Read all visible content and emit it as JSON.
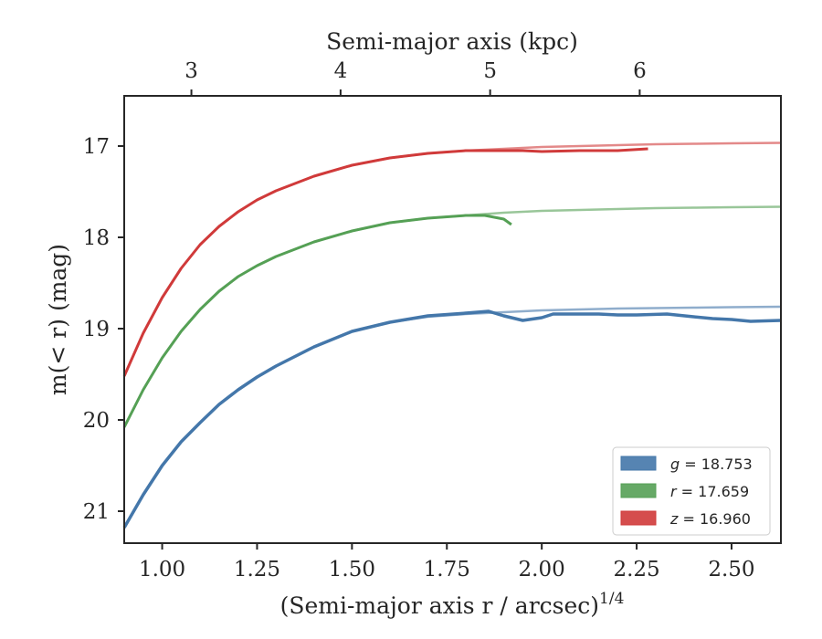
{
  "chart_data": {
    "type": "line",
    "xlabel": "(Semi-major axis r / arcsec)",
    "xlabel_sup": "1/4",
    "ylabel": "m(< r) (mag)",
    "top_xlabel": "Semi-major axis (kpc)",
    "xlim": [
      0.9,
      2.63
    ],
    "ylim": [
      21.35,
      16.45
    ],
    "y_inverted": true,
    "x_ticks": [
      1.0,
      1.25,
      1.5,
      1.75,
      2.0,
      2.25,
      2.5
    ],
    "x_tick_labels": [
      "1.00",
      "1.25",
      "1.50",
      "1.75",
      "2.00",
      "2.25",
      "2.50"
    ],
    "y_ticks": [
      17,
      18,
      19,
      20,
      21
    ],
    "y_tick_labels": [
      "17",
      "18",
      "19",
      "20",
      "21"
    ],
    "top_ticks": [
      3,
      4,
      5,
      6
    ],
    "top_tick_labels": [
      "3",
      "4",
      "5",
      "6"
    ],
    "top_tick_x_positions": [
      1.077,
      1.47,
      1.864,
      2.258
    ],
    "grid": false,
    "legend_position": "lower-right",
    "legend": [
      {
        "label": "g = 18.753",
        "var": "g",
        "value": "18.753",
        "color": "#4477aa"
      },
      {
        "label": "r = 17.659",
        "var": "r",
        "value": "17.659",
        "color": "#55a055"
      },
      {
        "label": "z = 16.960",
        "var": "z",
        "value": "16.960",
        "color": "#d03a3a"
      }
    ],
    "series": [
      {
        "name": "g = 18.753",
        "color": "#4477aa",
        "x": [
          0.9,
          0.95,
          1.0,
          1.05,
          1.1,
          1.15,
          1.2,
          1.25,
          1.3,
          1.4,
          1.5,
          1.6,
          1.7,
          1.8,
          1.86,
          1.9,
          1.95,
          2.0,
          2.03,
          2.1,
          2.15,
          2.2,
          2.25,
          2.33,
          2.4,
          2.45,
          2.5,
          2.55,
          2.63
        ],
        "y": [
          21.18,
          20.82,
          20.5,
          20.24,
          20.03,
          19.83,
          19.67,
          19.53,
          19.41,
          19.2,
          19.03,
          18.93,
          18.86,
          18.83,
          18.81,
          18.86,
          18.91,
          18.88,
          18.84,
          18.84,
          18.84,
          18.85,
          18.85,
          18.84,
          18.87,
          18.89,
          18.9,
          18.92,
          18.91
        ]
      },
      {
        "name": "r = 17.659",
        "color": "#55a055",
        "x": [
          0.9,
          0.95,
          1.0,
          1.05,
          1.1,
          1.15,
          1.2,
          1.25,
          1.3,
          1.4,
          1.5,
          1.6,
          1.7,
          1.8,
          1.85,
          1.9,
          1.92
        ],
        "y": [
          20.08,
          19.67,
          19.32,
          19.03,
          18.79,
          18.59,
          18.43,
          18.31,
          18.21,
          18.05,
          17.93,
          17.84,
          17.79,
          17.76,
          17.76,
          17.8,
          17.86
        ]
      },
      {
        "name": "z = 16.960",
        "color": "#d03a3a",
        "x": [
          0.9,
          0.95,
          1.0,
          1.05,
          1.1,
          1.15,
          1.2,
          1.25,
          1.3,
          1.4,
          1.5,
          1.6,
          1.7,
          1.8,
          1.85,
          1.9,
          1.95,
          2.0,
          2.1,
          2.2,
          2.28
        ],
        "y": [
          19.52,
          19.05,
          18.66,
          18.34,
          18.08,
          17.88,
          17.72,
          17.59,
          17.49,
          17.33,
          17.21,
          17.13,
          17.08,
          17.05,
          17.05,
          17.05,
          17.05,
          17.06,
          17.05,
          17.05,
          17.03
        ]
      }
    ],
    "model_curves": [
      {
        "name": "g model",
        "color": "#4477aa",
        "x": [
          0.9,
          0.95,
          1.0,
          1.05,
          1.1,
          1.15,
          1.2,
          1.25,
          1.3,
          1.4,
          1.5,
          1.6,
          1.7,
          1.8,
          1.9,
          2.0,
          2.1,
          2.2,
          2.3,
          2.4,
          2.5,
          2.63
        ],
        "y": [
          21.18,
          20.82,
          20.5,
          20.24,
          20.03,
          19.83,
          19.67,
          19.53,
          19.41,
          19.2,
          19.03,
          18.93,
          18.87,
          18.84,
          18.82,
          18.8,
          18.79,
          18.78,
          18.775,
          18.77,
          18.765,
          18.76
        ]
      },
      {
        "name": "r model",
        "color": "#55a055",
        "x": [
          0.9,
          0.95,
          1.0,
          1.05,
          1.1,
          1.15,
          1.2,
          1.25,
          1.3,
          1.4,
          1.5,
          1.6,
          1.7,
          1.8,
          1.9,
          2.0,
          2.1,
          2.2,
          2.3,
          2.4,
          2.5,
          2.63
        ],
        "y": [
          20.08,
          19.67,
          19.32,
          19.03,
          18.79,
          18.59,
          18.43,
          18.31,
          18.21,
          18.05,
          17.93,
          17.84,
          17.79,
          17.76,
          17.73,
          17.71,
          17.7,
          17.69,
          17.68,
          17.675,
          17.67,
          17.665
        ]
      },
      {
        "name": "z model",
        "color": "#d03a3a",
        "x": [
          0.9,
          0.95,
          1.0,
          1.05,
          1.1,
          1.15,
          1.2,
          1.25,
          1.3,
          1.4,
          1.5,
          1.6,
          1.7,
          1.8,
          1.9,
          2.0,
          2.1,
          2.2,
          2.3,
          2.4,
          2.5,
          2.63
        ],
        "y": [
          19.52,
          19.05,
          18.66,
          18.34,
          18.08,
          17.88,
          17.72,
          17.59,
          17.49,
          17.33,
          17.21,
          17.13,
          17.08,
          17.05,
          17.03,
          17.01,
          17.0,
          16.99,
          16.98,
          16.975,
          16.97,
          16.965
        ]
      }
    ]
  }
}
